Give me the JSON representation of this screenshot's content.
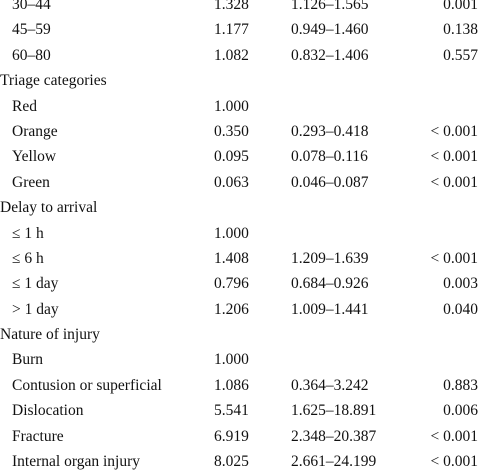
{
  "table": {
    "rows": [
      {
        "type": "item",
        "label": "30–44",
        "or": "1.328",
        "ci": "1.126–1.565",
        "p": "0.001"
      },
      {
        "type": "item",
        "label": "45–59",
        "or": "1.177",
        "ci": "0.949–1.460",
        "p": "0.138"
      },
      {
        "type": "item",
        "label": "60–80",
        "or": "1.082",
        "ci": "0.832–1.406",
        "p": "0.557"
      },
      {
        "type": "section",
        "label": "Triage categories",
        "or": "",
        "ci": "",
        "p": ""
      },
      {
        "type": "item",
        "label": "Red",
        "or": "1.000",
        "ci": "",
        "p": ""
      },
      {
        "type": "item",
        "label": "Orange",
        "or": "0.350",
        "ci": "0.293–0.418",
        "p": "< 0.001"
      },
      {
        "type": "item",
        "label": "Yellow",
        "or": "0.095",
        "ci": "0.078–0.116",
        "p": "< 0.001"
      },
      {
        "type": "item",
        "label": "Green",
        "or": "0.063",
        "ci": "0.046–0.087",
        "p": "< 0.001"
      },
      {
        "type": "section",
        "label": "Delay to arrival",
        "or": "",
        "ci": "",
        "p": ""
      },
      {
        "type": "item",
        "label": "≤ 1 h",
        "or": "1.000",
        "ci": "",
        "p": ""
      },
      {
        "type": "item",
        "label": "≤ 6 h",
        "or": "1.408",
        "ci": "1.209–1.639",
        "p": "< 0.001"
      },
      {
        "type": "item",
        "label": "≤ 1 day",
        "or": "0.796",
        "ci": "0.684–0.926",
        "p": "0.003"
      },
      {
        "type": "item",
        "label": "> 1 day",
        "or": "1.206",
        "ci": "1.009–1.441",
        "p": "0.040"
      },
      {
        "type": "section",
        "label": "Nature of injury",
        "or": "",
        "ci": "",
        "p": ""
      },
      {
        "type": "item",
        "label": "Burn",
        "or": "1.000",
        "ci": "",
        "p": ""
      },
      {
        "type": "item",
        "label": "Contusion or superficial",
        "or": "1.086",
        "ci": "0.364–3.242",
        "p": "0.883"
      },
      {
        "type": "item",
        "label": "Dislocation",
        "or": "5.541",
        "ci": "1.625–18.891",
        "p": "0.006"
      },
      {
        "type": "item",
        "label": "Fracture",
        "or": "6.919",
        "ci": "2.348–20.387",
        "p": "< 0.001"
      },
      {
        "type": "item",
        "label": "Internal organ injury",
        "or": "8.025",
        "ci": "2.661–24.199",
        "p": "< 0.001"
      }
    ]
  }
}
